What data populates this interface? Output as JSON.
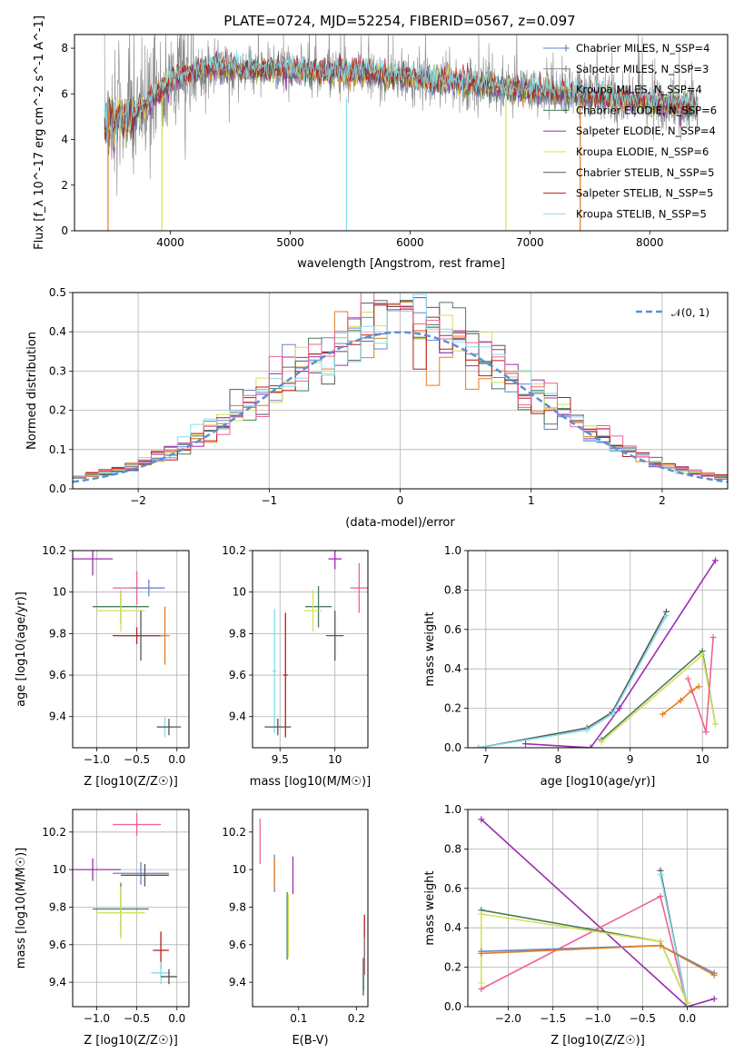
{
  "figure": {
    "title": "PLATE=0724, MJD=52254, FIBERID=0567, z=0.097"
  },
  "chart_data": [
    {
      "id": "spectrum",
      "type": "line",
      "xlabel": "wavelength [Angstrom, rest frame]",
      "ylabel": "Flux [f_λ 10^-17 erg cm^-2 s^-1 A^-1]",
      "xlim": [
        3200,
        8650
      ],
      "ylim": [
        0,
        8.6
      ],
      "xticks": [
        4000,
        5000,
        6000,
        7000,
        8000
      ],
      "yticks": [
        0,
        2,
        4,
        6,
        8
      ],
      "grid": false,
      "legend_position": "upper-right",
      "data_range": [
        3450,
        8400
      ],
      "legend": [
        {
          "name": "Chabrier MILES, N_SSP=4",
          "color": "#6a82c7",
          "marker": "+"
        },
        {
          "name": "Salpeter MILES, N_SSP=3",
          "color": "#8a8a8a",
          "marker": "+"
        },
        {
          "name": "Kroupa MILES, N_SSP=4",
          "color": "#e07f1f",
          "marker": "+"
        },
        {
          "name": "Chabrier ELODIE, N_SSP=6",
          "color": "#4a7a5a",
          "marker": "+"
        },
        {
          "name": "Salpeter ELODIE, N_SSP=4",
          "color": "#9b2fae",
          "marker": ""
        },
        {
          "name": "Kroupa ELODIE, N_SSP=6",
          "color": "#d4e157",
          "marker": ""
        },
        {
          "name": "Chabrier STELIB, N_SSP=5",
          "color": "#555555",
          "marker": ""
        },
        {
          "name": "Salpeter STELIB, N_SSP=5",
          "color": "#b71c1c",
          "marker": ""
        },
        {
          "name": "Kroupa STELIB, N_SSP=5",
          "color": "#80deea",
          "marker": ""
        }
      ]
    },
    {
      "id": "residuals",
      "type": "line",
      "xlabel": "(data-model)/error",
      "ylabel": "Normed distribution",
      "xlim": [
        -2.5,
        2.5
      ],
      "ylim": [
        0,
        0.5
      ],
      "xticks": [
        -2,
        -1,
        0,
        1,
        2
      ],
      "xtick_labels": [
        "−2",
        "−1",
        "0",
        "1",
        "2"
      ],
      "yticks": [
        0.0,
        0.1,
        0.2,
        0.3,
        0.4,
        0.5
      ],
      "ytick_labels": [
        "0.0",
        "0.1",
        "0.2",
        "0.3",
        "0.4",
        "0.5"
      ],
      "grid": true,
      "legend_position": "upper-right",
      "gaussian_label": "𝒩(0, 1)",
      "gaussian_color": "#5b8fd6",
      "bin_width": 0.1,
      "colors": [
        "#6a82c7",
        "#e07f1f",
        "#4a7a5a",
        "#9b2fae",
        "#d4e157",
        "#555555",
        "#b71c1c",
        "#80deea",
        "#f06292"
      ]
    },
    {
      "id": "age-Z",
      "type": "scatter",
      "xlabel": "Z [log10(Z/Z☉)]",
      "ylabel": "age [log10(age/yr)]",
      "xlim": [
        -1.3,
        0.15
      ],
      "ylim": [
        9.25,
        10.2
      ],
      "xticks": [
        -1.0,
        -0.5,
        0.0
      ],
      "xtick_labels": [
        "−1.0",
        "−0.5",
        "0.0"
      ],
      "yticks": [
        9.4,
        9.6,
        9.8,
        10.0,
        10.2
      ],
      "grid": true,
      "crosses": [
        {
          "x": -1.05,
          "y": 10.16,
          "dx": 0.25,
          "dy": 0.08,
          "color": "#9b2fae"
        },
        {
          "x": -0.5,
          "y": 10.02,
          "dx": 0.3,
          "dy": 0.08,
          "color": "#f06292"
        },
        {
          "x": -0.35,
          "y": 10.02,
          "dx": 0.2,
          "dy": 0.04,
          "color": "#6a82c7"
        },
        {
          "x": -0.7,
          "y": 9.93,
          "dx": 0.35,
          "dy": 0.08,
          "color": "#4a7a5a"
        },
        {
          "x": -0.7,
          "y": 9.91,
          "dx": 0.3,
          "dy": 0.1,
          "color": "#d4e157"
        },
        {
          "x": -0.5,
          "y": 9.79,
          "dx": 0.3,
          "dy": 0.04,
          "color": "#b71c1c"
        },
        {
          "x": -0.45,
          "y": 9.79,
          "dx": 0.28,
          "dy": 0.12,
          "color": "#555555"
        },
        {
          "x": -0.15,
          "y": 9.79,
          "dx": 0.06,
          "dy": 0.14,
          "color": "#e07f1f"
        },
        {
          "x": -0.15,
          "y": 9.35,
          "dx": 0.1,
          "dy": 0.05,
          "color": "#80deea"
        },
        {
          "x": -0.1,
          "y": 9.35,
          "dx": 0.15,
          "dy": 0.04,
          "color": "#555555"
        }
      ]
    },
    {
      "id": "age-mass",
      "type": "scatter",
      "xlabel": "mass [log10(M/M☉)]",
      "ylabel": "",
      "xlim": [
        9.25,
        10.3
      ],
      "ylim": [
        9.25,
        10.2
      ],
      "xticks": [
        9.5,
        10.0
      ],
      "yticks": [
        9.4,
        9.6,
        9.8,
        10.0,
        10.2
      ],
      "grid": true,
      "crosses": [
        {
          "x": 10.0,
          "y": 10.16,
          "dx": 0.06,
          "dy": 0.05,
          "color": "#9b2fae"
        },
        {
          "x": 10.22,
          "y": 10.02,
          "dx": 0.08,
          "dy": 0.12,
          "color": "#f06292"
        },
        {
          "x": 9.85,
          "y": 9.93,
          "dx": 0.12,
          "dy": 0.1,
          "color": "#4a7a5a"
        },
        {
          "x": 9.8,
          "y": 9.91,
          "dx": 0.08,
          "dy": 0.1,
          "color": "#d4e157"
        },
        {
          "x": 10.0,
          "y": 9.79,
          "dx": 0.08,
          "dy": 0.12,
          "color": "#555555"
        },
        {
          "x": 9.55,
          "y": 9.6,
          "dx": 0.02,
          "dy": 0.3,
          "color": "#b71c1c"
        },
        {
          "x": 9.45,
          "y": 9.62,
          "dx": 0.02,
          "dy": 0.3,
          "color": "#80deea"
        },
        {
          "x": 9.48,
          "y": 9.35,
          "dx": 0.12,
          "dy": 0.04,
          "color": "#555555"
        }
      ]
    },
    {
      "id": "weight-age",
      "type": "line",
      "xlabel": "age [log10(age/yr)]",
      "ylabel": "mass weight",
      "xlim": [
        6.75,
        10.35
      ],
      "ylim": [
        0,
        1.0
      ],
      "xticks": [
        7,
        8,
        9,
        10
      ],
      "yticks": [
        0.0,
        0.2,
        0.4,
        0.6,
        0.8,
        1.0
      ],
      "ytick_labels": [
        "0.0",
        "0.2",
        "0.4",
        "0.6",
        "0.8",
        "1.0"
      ],
      "grid": true,
      "series": [
        {
          "x": [
            7.55,
            8.45,
            8.85,
            10.18
          ],
          "y": [
            0.02,
            0.0,
            0.2,
            0.95
          ],
          "color": "#9b2fae"
        },
        {
          "x": [
            6.9,
            8.4,
            8.75,
            9.5
          ],
          "y": [
            0.0,
            0.1,
            0.18,
            0.69
          ],
          "color": "#555555"
        },
        {
          "x": [
            6.9,
            8.4,
            8.75,
            9.5
          ],
          "y": [
            0.0,
            0.09,
            0.17,
            0.67
          ],
          "color": "#80deea"
        },
        {
          "x": [
            8.6,
            10.0,
            10.18
          ],
          "y": [
            0.04,
            0.49,
            0.12
          ],
          "color": "#4a7a5a"
        },
        {
          "x": [
            8.6,
            10.0,
            10.18
          ],
          "y": [
            0.03,
            0.47,
            0.12
          ],
          "color": "#d4e157"
        },
        {
          "x": [
            9.45,
            9.7,
            9.85,
            9.95
          ],
          "y": [
            0.17,
            0.24,
            0.29,
            0.31
          ],
          "color": "#e07f1f"
        },
        {
          "x": [
            9.8,
            10.05,
            10.15
          ],
          "y": [
            0.35,
            0.08,
            0.56
          ],
          "color": "#f06292"
        }
      ]
    },
    {
      "id": "mass-Z",
      "type": "scatter",
      "xlabel": "Z [log10(Z/Z☉)]",
      "ylabel": "mass [log10(M/M☉)]",
      "xlim": [
        -1.3,
        0.15
      ],
      "ylim": [
        9.27,
        10.32
      ],
      "xticks": [
        -1.0,
        -0.5,
        0.0
      ],
      "xtick_labels": [
        "−1.0",
        "−0.5",
        "0.0"
      ],
      "yticks": [
        9.4,
        9.6,
        9.8,
        10.0,
        10.2
      ],
      "grid": true,
      "crosses": [
        {
          "x": -0.5,
          "y": 10.24,
          "dx": 0.3,
          "dy": 0.06,
          "color": "#f06292"
        },
        {
          "x": -1.05,
          "y": 10.0,
          "dx": 0.35,
          "dy": 0.06,
          "color": "#9b2fae"
        },
        {
          "x": -0.45,
          "y": 9.98,
          "dx": 0.35,
          "dy": 0.06,
          "color": "#6a82c7"
        },
        {
          "x": -0.4,
          "y": 9.97,
          "dx": 0.3,
          "dy": 0.06,
          "color": "#555555"
        },
        {
          "x": -0.7,
          "y": 9.79,
          "dx": 0.35,
          "dy": 0.14,
          "color": "#4a7a5a"
        },
        {
          "x": -0.7,
          "y": 9.77,
          "dx": 0.3,
          "dy": 0.14,
          "color": "#d4e157"
        },
        {
          "x": -0.2,
          "y": 9.57,
          "dx": 0.1,
          "dy": 0.1,
          "color": "#b71c1c"
        },
        {
          "x": -0.2,
          "y": 9.45,
          "dx": 0.12,
          "dy": 0.06,
          "color": "#80deea"
        },
        {
          "x": -0.1,
          "y": 9.43,
          "dx": 0.1,
          "dy": 0.04,
          "color": "#555555"
        }
      ]
    },
    {
      "id": "mass-ebv",
      "type": "scatter",
      "xlabel": "E(B-V)",
      "ylabel": "",
      "xlim": [
        0.02,
        0.22
      ],
      "ylim": [
        9.27,
        10.32
      ],
      "xticks": [
        0.1,
        0.2
      ],
      "yticks": [
        9.4,
        9.6,
        9.8,
        10.0,
        10.2
      ],
      "grid": false,
      "bars": [
        {
          "x": 0.033,
          "y": 10.15,
          "dy": 0.12,
          "color": "#f06292"
        },
        {
          "x": 0.058,
          "y": 9.98,
          "dy": 0.1,
          "color": "#6a82c7"
        },
        {
          "x": 0.058,
          "y": 9.98,
          "dy": 0.08,
          "color": "#e07f1f"
        },
        {
          "x": 0.09,
          "y": 9.97,
          "dy": 0.1,
          "color": "#9b2fae"
        },
        {
          "x": 0.08,
          "y": 9.7,
          "dy": 0.18,
          "color": "#4a7a5a"
        },
        {
          "x": 0.082,
          "y": 9.7,
          "dy": 0.17,
          "color": "#d4e157"
        },
        {
          "x": 0.214,
          "y": 9.6,
          "dy": 0.16,
          "color": "#b71c1c"
        },
        {
          "x": 0.213,
          "y": 9.5,
          "dy": 0.14,
          "color": "#80deea"
        },
        {
          "x": 0.212,
          "y": 9.43,
          "dy": 0.1,
          "color": "#555555"
        }
      ]
    },
    {
      "id": "weight-Z",
      "type": "line",
      "xlabel": "Z [log10(Z/Z☉)]",
      "ylabel": "mass weight",
      "xlim": [
        -2.45,
        0.45
      ],
      "ylim": [
        0,
        1.0
      ],
      "xticks": [
        -2.0,
        -1.5,
        -1.0,
        -0.5,
        0.0
      ],
      "xtick_labels": [
        "−2.0",
        "−1.5",
        "−1.0",
        "−0.5",
        "0.0"
      ],
      "yticks": [
        0.0,
        0.2,
        0.4,
        0.6,
        0.8,
        1.0
      ],
      "ytick_labels": [
        "0.0",
        "0.2",
        "0.4",
        "0.6",
        "0.8",
        "1.0"
      ],
      "grid": true,
      "series": [
        {
          "x": [
            -2.3,
            0.0,
            0.3
          ],
          "y": [
            0.95,
            0.0,
            0.04
          ],
          "color": "#9b2fae"
        },
        {
          "x": [
            -2.3,
            -0.3,
            0.0
          ],
          "y": [
            0.09,
            0.56,
            0.0
          ],
          "color": "#f06292"
        },
        {
          "x": [
            -0.3,
            0.0
          ],
          "y": [
            0.69,
            0.0
          ],
          "color": "#555555"
        },
        {
          "x": [
            -0.3,
            0.0
          ],
          "y": [
            0.67,
            0.0
          ],
          "color": "#80deea"
        },
        {
          "x": [
            -2.3,
            -0.3,
            0.0
          ],
          "y": [
            0.49,
            0.33,
            0.02
          ],
          "color": "#4a7a5a"
        },
        {
          "x": [
            -2.3,
            -2.3,
            -0.3,
            0.0
          ],
          "y": [
            0.12,
            0.47,
            0.33,
            0.02
          ],
          "color": "#d4e157"
        },
        {
          "x": [
            -2.3,
            -0.3,
            0.3
          ],
          "y": [
            0.28,
            0.31,
            0.17
          ],
          "color": "#6a82c7"
        },
        {
          "x": [
            -2.3,
            -0.3,
            0.3
          ],
          "y": [
            0.27,
            0.31,
            0.16
          ],
          "color": "#e07f1f"
        }
      ]
    }
  ]
}
